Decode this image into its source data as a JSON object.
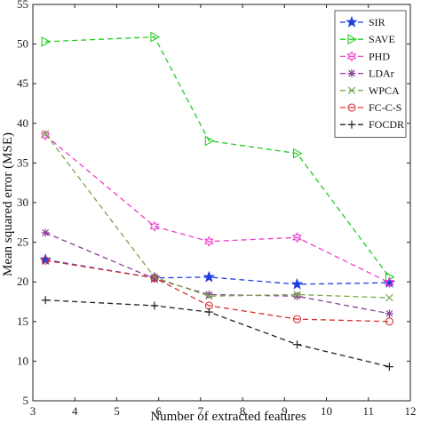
{
  "chart_data": {
    "type": "line",
    "title": "",
    "xlabel": "Number of extracted features",
    "ylabel": "Mean squared error (MSE)",
    "xlim": [
      3,
      12
    ],
    "ylim": [
      5,
      55
    ],
    "xticks": [
      3,
      4,
      5,
      6,
      7,
      8,
      9,
      10,
      11,
      12
    ],
    "yticks": [
      5,
      10,
      15,
      20,
      25,
      30,
      35,
      40,
      45,
      50,
      55
    ],
    "x": [
      3.3,
      5.9,
      7.2,
      9.3,
      11.5
    ],
    "legend_position": "top-right",
    "grid": false,
    "series": [
      {
        "name": "SIR",
        "color": "#1f3fe0",
        "marker": "star",
        "values": [
          22.8,
          20.5,
          20.6,
          19.7,
          19.9
        ]
      },
      {
        "name": "SAVE",
        "color": "#22cc22",
        "marker": "triangle-right",
        "values": [
          50.3,
          50.9,
          37.8,
          36.2,
          20.6
        ]
      },
      {
        "name": "PHD",
        "color": "#ee3fcc",
        "marker": "hexagram",
        "values": [
          38.5,
          27.0,
          25.1,
          25.6,
          19.9
        ]
      },
      {
        "name": "LDAr",
        "color": "#8a3f9a",
        "marker": "asterisk",
        "values": [
          26.2,
          20.4,
          18.4,
          18.2,
          16.0
        ]
      },
      {
        "name": "WPCA",
        "color": "#7aa84a",
        "marker": "x",
        "values": [
          38.7,
          20.6,
          18.2,
          18.4,
          18.0
        ]
      },
      {
        "name": "FC-C-S",
        "color": "#d93030",
        "marker": "circle",
        "values": [
          22.7,
          20.5,
          17.0,
          15.3,
          15.0
        ]
      },
      {
        "name": "FOCDR",
        "color": "#222222",
        "marker": "plus",
        "values": [
          17.7,
          17.0,
          16.2,
          12.1,
          9.3
        ]
      }
    ]
  }
}
